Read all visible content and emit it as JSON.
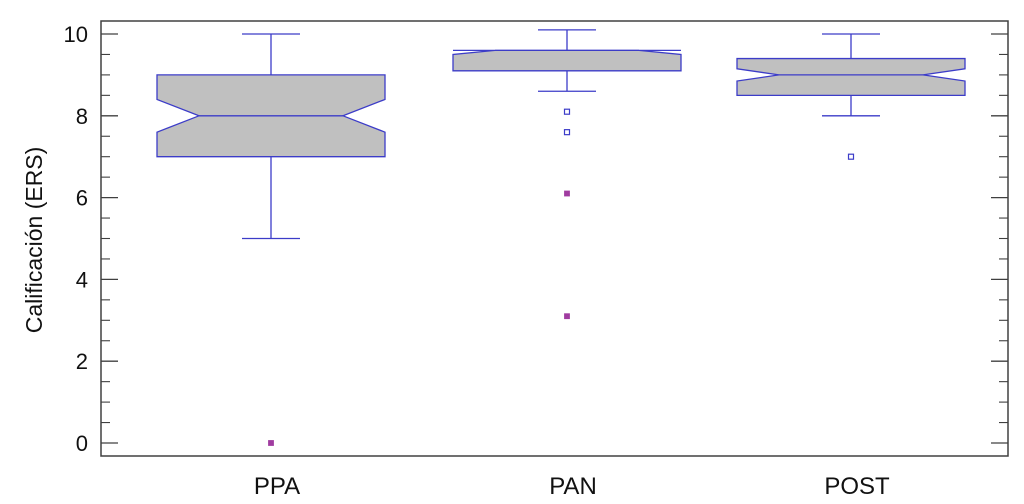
{
  "chart_data": {
    "type": "boxplot",
    "title": "",
    "xlabel": "",
    "ylabel": "Calificación (ERS)",
    "ylim": [
      0,
      10
    ],
    "yticks": [
      0,
      2,
      4,
      6,
      8,
      10
    ],
    "minor_yticks_per_major": 4,
    "grid": false,
    "notched": true,
    "categories": [
      "PPA",
      "PAN",
      "POST"
    ],
    "series": [
      {
        "name": "PPA",
        "whisker_low": 5,
        "q1": 7,
        "median": 8,
        "q3": 9,
        "whisker_high": 10,
        "notch_low": 7.6,
        "notch_high": 8.4,
        "outliers": [
          {
            "value": 0,
            "type": "far"
          }
        ]
      },
      {
        "name": "PAN",
        "whisker_low": 8.6,
        "q1": 9.1,
        "median": 9.6,
        "q3": 9.6,
        "whisker_high": 10.1,
        "notch_low": 9.5,
        "notch_high": 9.7,
        "outliers": [
          {
            "value": 8.1,
            "type": "near"
          },
          {
            "value": 7.6,
            "type": "near"
          },
          {
            "value": 6.1,
            "type": "far"
          },
          {
            "value": 3.1,
            "type": "far"
          }
        ]
      },
      {
        "name": "POST",
        "whisker_low": 8,
        "q1": 8.5,
        "median": 9,
        "q3": 9.4,
        "whisker_high": 10,
        "notch_low": 8.85,
        "notch_high": 9.15,
        "outliers": [
          {
            "value": 7,
            "type": "near"
          }
        ]
      }
    ],
    "colors": {
      "box_fill": "#c0c0c0",
      "box_stroke": "#3c3cc8",
      "near_outlier": "#3c3cc8",
      "far_outlier": "#a03ca0",
      "axis": "#404040"
    }
  }
}
